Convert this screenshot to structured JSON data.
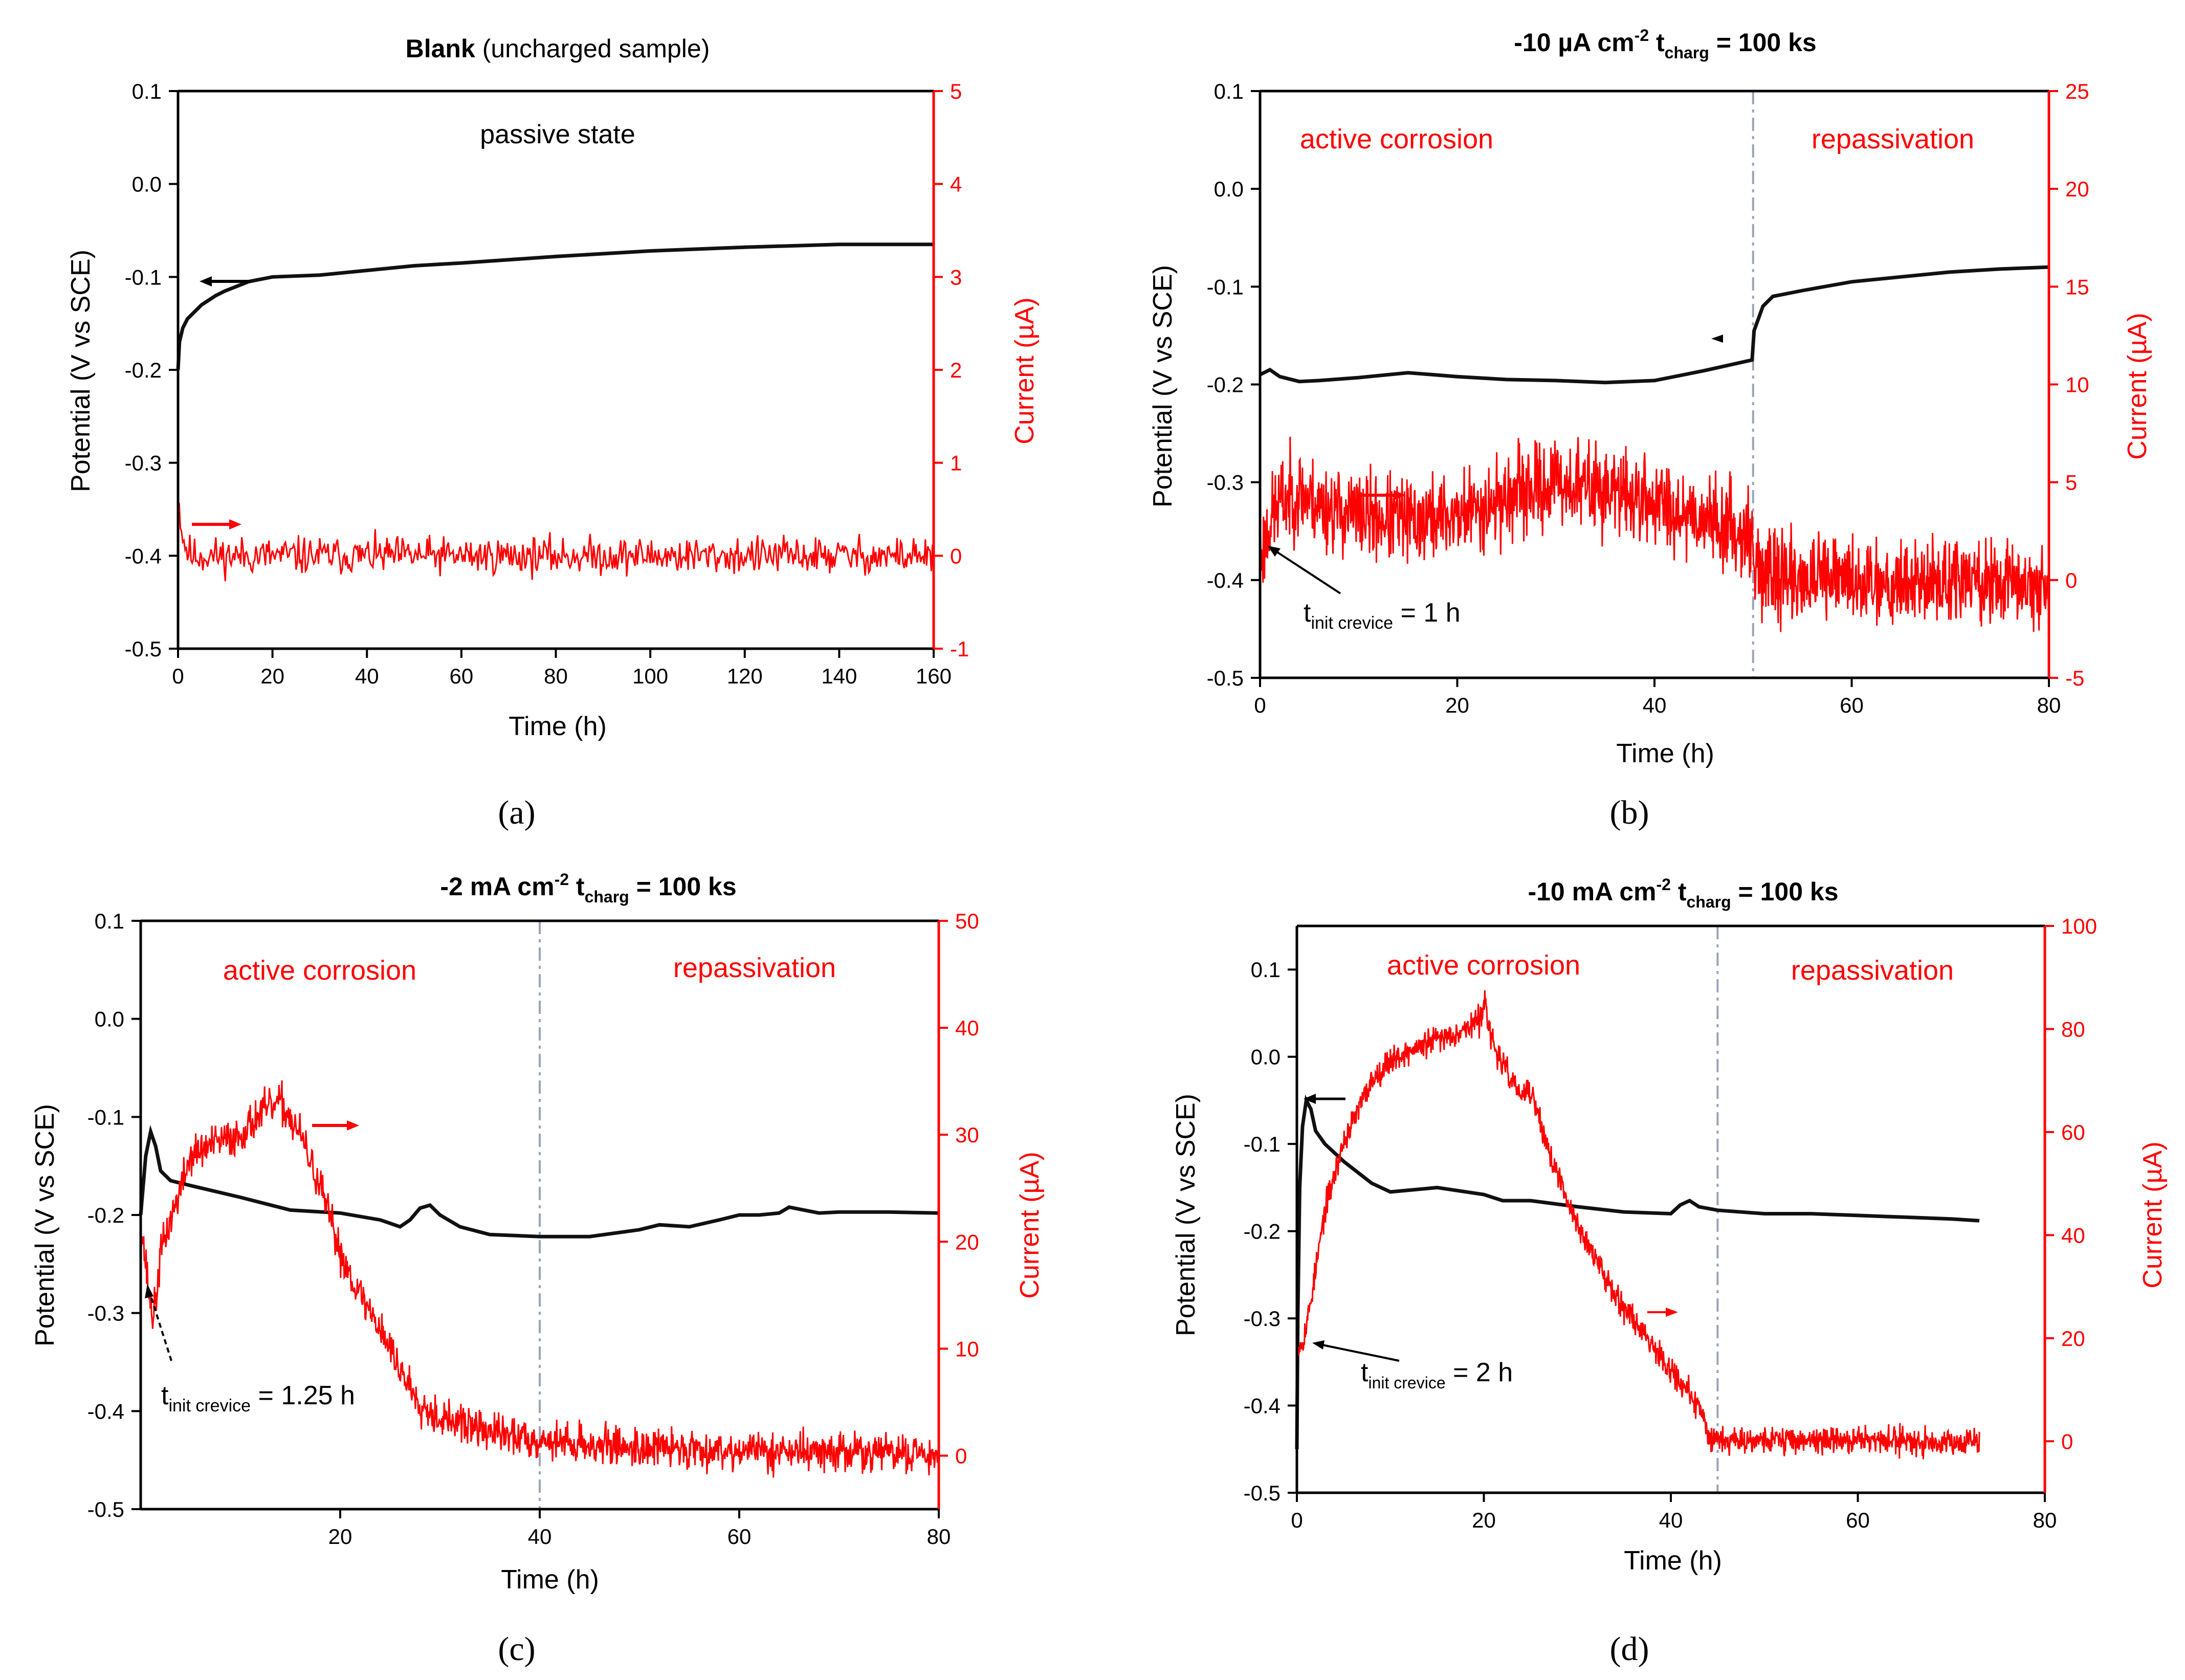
{
  "chart_data": [
    {
      "type": "line",
      "panel_label": "(a)",
      "title_bold": "Blank",
      "title_rest": " (uncharged sample)",
      "xlabel": "Time (h)",
      "ylabel": "Potential (V vs SCE)",
      "y2label": "Current  (µA)",
      "xlim": [
        0,
        160
      ],
      "ylim": [
        -0.5,
        0.1
      ],
      "y2lim": [
        -1,
        5
      ],
      "xticks": [
        0,
        20,
        40,
        60,
        80,
        100,
        120,
        140,
        160
      ],
      "xticks_text": [
        "0",
        "20",
        "40",
        "60",
        "80",
        "100",
        "120",
        "140",
        "160"
      ],
      "yticks": [
        0.1,
        0.0,
        -0.1,
        -0.2,
        -0.3,
        -0.4,
        -0.5
      ],
      "yticks_text": [
        "0.1",
        "0.0",
        "-0.1",
        "-0.2",
        "-0.3",
        "-0.4",
        "-0.5"
      ],
      "y2ticks": [
        5,
        4,
        3,
        2,
        1,
        0,
        -1
      ],
      "y2ticks_text": [
        "5",
        "4",
        "3",
        "2",
        "1",
        "0",
        "-1"
      ],
      "annotations": [
        {
          "text": "passive state",
          "color": "black"
        }
      ],
      "series": [
        {
          "name": "Potential",
          "axis": "left",
          "color": "#111111",
          "noise": 0,
          "x": [
            0,
            0.3,
            1,
            2,
            3,
            5,
            8,
            10,
            15,
            20,
            30,
            40,
            50,
            60,
            80,
            100,
            120,
            140,
            160
          ],
          "y": [
            -0.2,
            -0.17,
            -0.155,
            -0.145,
            -0.14,
            -0.13,
            -0.12,
            -0.115,
            -0.105,
            -0.1,
            -0.098,
            -0.093,
            -0.088,
            -0.085,
            -0.078,
            -0.072,
            -0.068,
            -0.065,
            -0.065
          ]
        },
        {
          "name": "Current",
          "axis": "right",
          "color": "#ff0000",
          "noise": 0.1,
          "seed": 11,
          "step": 0.25,
          "x": [
            0,
            0.3,
            1,
            2,
            3,
            5,
            160
          ],
          "y": [
            0.7,
            0.5,
            0.2,
            0.05,
            0.0,
            0.0,
            0.0
          ]
        }
      ]
    },
    {
      "type": "line",
      "panel_label": "(b)",
      "title_parts": [
        "-10 µA cm",
        "-2",
        "  t",
        "charg",
        " = 100 ks"
      ],
      "xlabel": "Time (h)",
      "ylabel": "Potential (V vs SCE)",
      "y2label": "Current (µA)",
      "xlim": [
        0,
        80
      ],
      "ylim": [
        -0.5,
        0.1
      ],
      "y2lim": [
        -5,
        25
      ],
      "xticks": [
        0,
        20,
        40,
        60,
        80
      ],
      "xticks_text": [
        "0",
        "20",
        "40",
        "60",
        "80"
      ],
      "yticks": [
        0.1,
        0.0,
        -0.1,
        -0.2,
        -0.3,
        -0.4,
        -0.5
      ],
      "yticks_text": [
        "0.1",
        "0.0",
        "-0.1",
        "-0.2",
        "-0.3",
        "-0.4",
        "-0.5"
      ],
      "y2ticks": [
        25,
        20,
        15,
        10,
        5,
        0,
        -5
      ],
      "y2ticks_text": [
        "25",
        "20",
        "15",
        "10",
        "5",
        "0",
        "-5"
      ],
      "vline_x": 50,
      "annotations": [
        {
          "text": "active corrosion",
          "color": "red"
        },
        {
          "text": "repassivation",
          "color": "red"
        },
        {
          "text_main": "t",
          "text_sub": "init crevice",
          "text_rest": " = 1 h",
          "color": "black"
        }
      ],
      "series": [
        {
          "name": "Potential",
          "axis": "left",
          "color": "#111111",
          "noise": 0,
          "x": [
            0,
            1,
            2,
            4,
            6,
            10,
            15,
            20,
            25,
            30,
            35,
            40,
            45,
            49.9,
            50.1,
            51,
            52,
            55,
            60,
            65,
            70,
            75,
            80
          ],
          "y": [
            -0.19,
            -0.185,
            -0.192,
            -0.197,
            -0.196,
            -0.193,
            -0.188,
            -0.192,
            -0.195,
            -0.196,
            -0.198,
            -0.196,
            -0.186,
            -0.175,
            -0.145,
            -0.12,
            -0.11,
            -0.104,
            -0.095,
            -0.09,
            -0.085,
            -0.082,
            -0.08
          ]
        },
        {
          "name": "Current",
          "axis": "right",
          "color": "#ff0000",
          "noise": 1.1,
          "seed": 23,
          "step": 0.05,
          "x": [
            0,
            0.5,
            1,
            2,
            4,
            6,
            10,
            15,
            20,
            25,
            30,
            35,
            40,
            45,
            49.9,
            50.1,
            55,
            60,
            70,
            80
          ],
          "y": [
            1.0,
            2.0,
            3.0,
            4.0,
            4.5,
            3.8,
            3.3,
            3.0,
            3.3,
            4.2,
            5.0,
            4.6,
            4.0,
            3.2,
            2.3,
            0.5,
            0.0,
            0.0,
            -0.1,
            -0.2
          ]
        }
      ]
    },
    {
      "type": "line",
      "panel_label": "(c)",
      "title_parts": [
        "-2 mA cm",
        "-2",
        "    t",
        "charg",
        " =  100 ks"
      ],
      "xlabel": "Time (h)",
      "ylabel": "Potential (V vs SCE)",
      "y2label": "Current (µA)",
      "xlim": [
        0,
        80
      ],
      "ylim": [
        -0.5,
        0.1
      ],
      "y2lim": [
        -5,
        50
      ],
      "xticks": [
        20,
        40,
        60,
        80
      ],
      "xticks_text": [
        "20",
        "40",
        "60",
        "80"
      ],
      "yticks": [
        0.1,
        0.0,
        -0.1,
        -0.2,
        -0.3,
        -0.4,
        -0.5
      ],
      "yticks_text": [
        "0.1",
        "0.0",
        "-0.1",
        "-0.2",
        "-0.3",
        "-0.4",
        "-0.5"
      ],
      "y2ticks": [
        50,
        40,
        30,
        20,
        10,
        0
      ],
      "y2ticks_text": [
        "50",
        "40",
        "30",
        "20",
        "10",
        "0"
      ],
      "vline_x": 40,
      "annotations": [
        {
          "text": "active corrosion",
          "color": "red"
        },
        {
          "text": "repassivation",
          "color": "red"
        },
        {
          "text_main": "t",
          "text_sub": "init crevice",
          "text_rest": " = 1.25 h",
          "color": "black"
        }
      ],
      "series": [
        {
          "name": "Potential",
          "axis": "left",
          "color": "#111111",
          "noise": 0,
          "x": [
            0,
            0.5,
            1,
            1.5,
            2,
            3,
            5,
            10,
            15,
            20,
            24,
            26,
            27,
            28,
            29,
            30,
            32,
            35,
            40,
            45,
            50,
            52,
            55,
            58,
            60,
            62,
            64,
            65,
            68,
            70,
            75,
            80
          ],
          "y": [
            -0.2,
            -0.14,
            -0.115,
            -0.13,
            -0.155,
            -0.165,
            -0.17,
            -0.182,
            -0.195,
            -0.198,
            -0.205,
            -0.212,
            -0.205,
            -0.193,
            -0.19,
            -0.2,
            -0.212,
            -0.22,
            -0.222,
            -0.222,
            -0.215,
            -0.21,
            -0.212,
            -0.205,
            -0.2,
            -0.2,
            -0.198,
            -0.192,
            -0.198,
            -0.197,
            -0.197,
            -0.198
          ]
        },
        {
          "name": "Current",
          "axis": "right",
          "color": "#ff0000",
          "noise": 0.9,
          "seed": 37,
          "step": 0.06,
          "x": [
            0,
            0.5,
            1,
            1.25,
            1.6,
            2,
            3,
            4,
            5,
            7,
            10,
            12,
            14,
            16,
            18,
            20,
            22,
            24,
            26,
            28,
            30,
            32,
            34,
            36,
            40,
            45,
            50,
            60,
            70,
            80
          ],
          "y": [
            22,
            18,
            14,
            13,
            15,
            19,
            22,
            25,
            28,
            29,
            30,
            32,
            33,
            30,
            25,
            19,
            15,
            12,
            8,
            5,
            3.5,
            3,
            2.5,
            2,
            1.5,
            1,
            0.8,
            0.5,
            0.3,
            0.2
          ]
        }
      ]
    },
    {
      "type": "line",
      "panel_label": "(d)",
      "title_parts": [
        "-10 mA cm",
        "-2",
        "    t",
        "charg",
        " =  100 ks"
      ],
      "xlabel": "Time (h)",
      "ylabel": "Potential (V vs SCE)",
      "y2label": "Current (µA)",
      "xlim": [
        0,
        80
      ],
      "ylim": [
        -0.5,
        0.15
      ],
      "y2lim": [
        -10,
        100
      ],
      "xticks": [
        0,
        20,
        40,
        60,
        80
      ],
      "xticks_text": [
        "0",
        "20",
        "40",
        "60",
        "80"
      ],
      "yticks": [
        0.1,
        0.0,
        -0.1,
        -0.2,
        -0.3,
        -0.4,
        -0.5
      ],
      "yticks_text": [
        "0.1",
        "0.0",
        "-0.1",
        "-0.2",
        "-0.3",
        "-0.4",
        "-0.5"
      ],
      "y2ticks": [
        100,
        80,
        60,
        40,
        20,
        0
      ],
      "y2ticks_text": [
        "100",
        "80",
        "60",
        "40",
        "20",
        "0"
      ],
      "vline_x": 45,
      "annotations": [
        {
          "text": "active corrosion",
          "color": "red"
        },
        {
          "text": "repassivation",
          "color": "red"
        },
        {
          "text_main": "t",
          "text_sub": "init crevice",
          "text_rest": " = 2 h",
          "color": "black"
        }
      ],
      "series": [
        {
          "name": "Potential",
          "axis": "left",
          "color": "#111111",
          "noise": 0,
          "x": [
            0,
            0.1,
            0.3,
            0.6,
            1,
            1.5,
            2,
            3,
            5,
            8,
            10,
            15,
            20,
            22,
            25,
            30,
            35,
            40,
            41,
            42,
            43,
            45,
            50,
            55,
            60,
            65,
            70,
            73
          ],
          "y": [
            -0.45,
            -0.3,
            -0.15,
            -0.08,
            -0.05,
            -0.06,
            -0.085,
            -0.1,
            -0.12,
            -0.145,
            -0.155,
            -0.15,
            -0.158,
            -0.165,
            -0.165,
            -0.172,
            -0.178,
            -0.18,
            -0.17,
            -0.165,
            -0.172,
            -0.176,
            -0.18,
            -0.18,
            -0.182,
            -0.184,
            -0.186,
            -0.188
          ]
        },
        {
          "name": "Current",
          "axis": "right",
          "color": "#ff0000",
          "noise": 1.3,
          "seed": 53,
          "step": 0.05,
          "x": [
            0,
            0.5,
            1,
            2,
            3,
            5,
            8,
            10,
            15,
            18,
            19.8,
            20.1,
            20.5,
            21,
            22,
            24,
            25,
            27,
            29,
            32,
            35,
            38,
            40,
            42,
            43.5,
            44,
            45,
            50,
            60,
            70,
            73
          ],
          "y": [
            18,
            19,
            22,
            33,
            45,
            58,
            70,
            74,
            78,
            80,
            82,
            88,
            80,
            77,
            73,
            67,
            68,
            56,
            46,
            35,
            26,
            19,
            14,
            9,
            5,
            1,
            0.5,
            0.3,
            0.2,
            0.0,
            0.0
          ]
        }
      ]
    }
  ]
}
